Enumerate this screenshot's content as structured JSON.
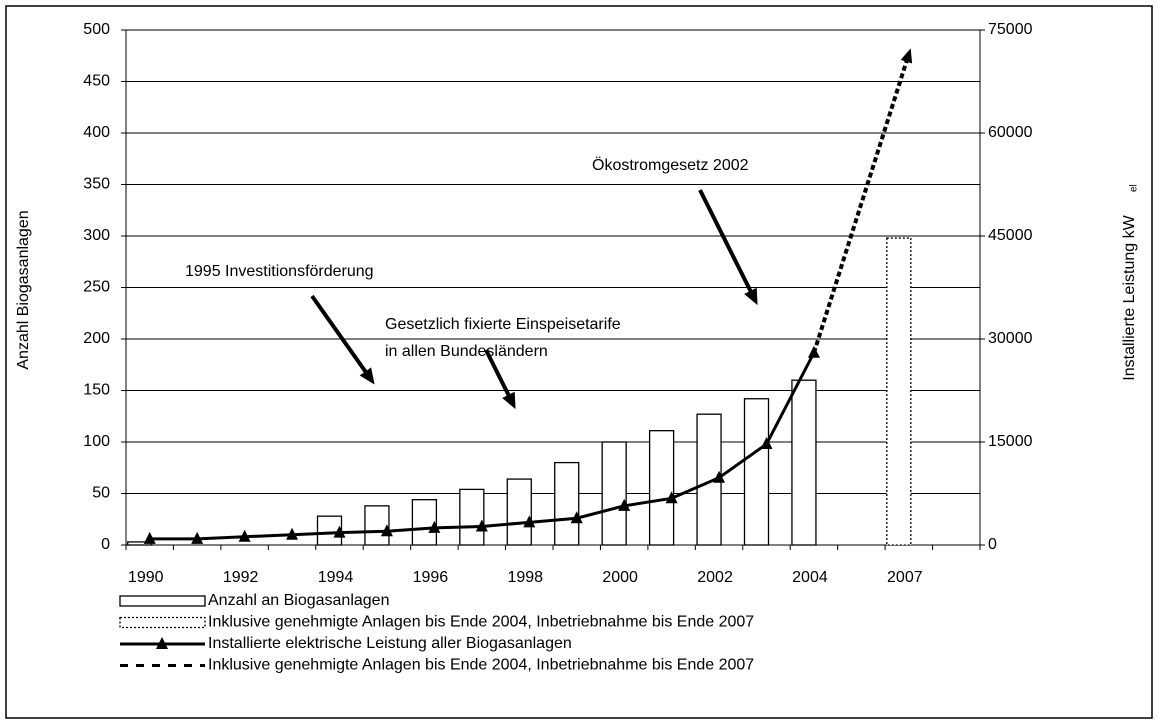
{
  "chart_data": {
    "type": "bar",
    "y_label": "Anzahl Biogasanlagen",
    "y2_label": "Installierte Leistung kW",
    "y2_label_sub": "el",
    "categories": [
      1990,
      null,
      1992,
      null,
      1994,
      null,
      1996,
      null,
      1998,
      null,
      2000,
      null,
      2002,
      null,
      2004,
      null,
      2007,
      null
    ],
    "series": [
      {
        "name": "Anzahl an Biogasanlagen",
        "type": "bar",
        "style": "solid",
        "color": "#000000",
        "values": [
          3,
          null,
          null,
          null,
          28,
          38,
          44,
          54,
          64,
          80,
          100,
          111,
          127,
          142,
          160,
          null,
          null,
          null
        ]
      },
      {
        "name": "Inklusive genehmigte Anlagen bis Ende 2004, Inbetriebnahme bis Ende 2007",
        "type": "bar",
        "style": "dotted",
        "color": "#000000",
        "values": [
          null,
          null,
          null,
          null,
          null,
          null,
          null,
          null,
          null,
          null,
          null,
          null,
          null,
          null,
          null,
          null,
          298,
          null
        ]
      },
      {
        "name": "Installierte elektrische Leistung aller Biogasanlagen",
        "type": "line",
        "style": "solid",
        "marker": "triangle",
        "axis": "y2",
        "color": "#000000",
        "values": [
          900,
          900,
          1200,
          1500,
          1800,
          2000,
          2500,
          2700,
          3300,
          3900,
          5700,
          6800,
          9800,
          14700,
          28000,
          null,
          null,
          null
        ]
      },
      {
        "name": "Inklusive genehmigte Anlagen bis Ende 2004, Inbetriebnahme bis Ende 2007",
        "type": "line",
        "style": "dashed",
        "marker": "arrow",
        "axis": "y2",
        "color": "#000000",
        "values": [
          null,
          null,
          null,
          null,
          null,
          null,
          null,
          null,
          null,
          null,
          null,
          null,
          null,
          null,
          28000,
          49750,
          71500,
          null
        ]
      }
    ],
    "ylim": [
      0,
      500
    ],
    "yticks": [
      0,
      50,
      100,
      150,
      200,
      250,
      300,
      350,
      400,
      450,
      500
    ],
    "y2lim": [
      0,
      75000
    ],
    "y2ticks": [
      0,
      15000,
      30000,
      45000,
      60000,
      75000
    ],
    "grid": true,
    "annotations": [
      "1995 Investitionsförderung",
      "Gesetzlich fixierte Einspeisetarife",
      "in allen Bundesländern",
      "Ökostromgesetz 2002"
    ]
  }
}
